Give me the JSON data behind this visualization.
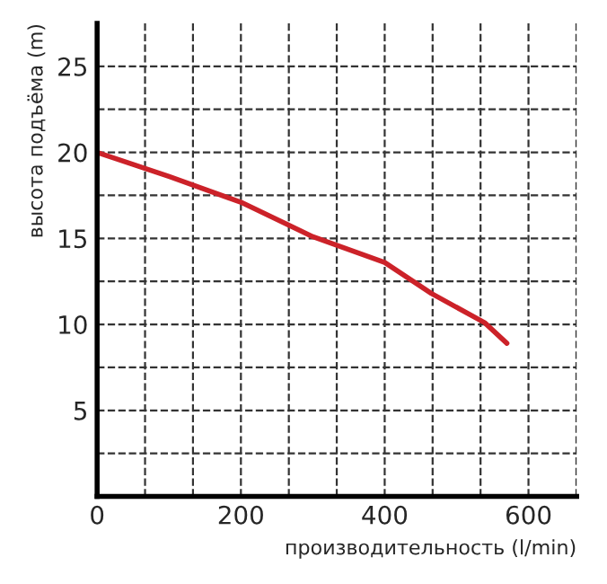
{
  "chart_data": {
    "type": "line",
    "xlabel": "производительность (l/min)",
    "ylabel": "высота подъёма (m)",
    "x": [
      0,
      100,
      200,
      300,
      400,
      465,
      539,
      570
    ],
    "series": [
      {
        "color": "#cc2229",
        "values": [
          20,
          18.6,
          17.1,
          15.1,
          13.6,
          11.8,
          10.1,
          8.9
        ]
      }
    ],
    "xlim": [
      0,
      667
    ],
    "ylim": [
      0,
      27.5
    ],
    "xticks": [
      0,
      {
        "value": 66.67,
        "label": null
      },
      {
        "value": 133.33,
        "label": null
      },
      200,
      {
        "value": 266.67,
        "label": null
      },
      {
        "value": 333.33,
        "label": null
      },
      400,
      {
        "value": 466.67,
        "label": null
      },
      {
        "value": 533.33,
        "label": null
      },
      600,
      {
        "value": 666.67,
        "label": null
      }
    ],
    "yticks": [
      {
        "value": 2.5,
        "label": null
      },
      5,
      {
        "value": 7.5,
        "label": null
      },
      10,
      {
        "value": 12.5,
        "label": null
      },
      15,
      {
        "value": 17.5,
        "label": null
      },
      20,
      {
        "value": 22.5,
        "label": null
      },
      25
    ],
    "grid": true,
    "marker": "none",
    "line_style": "solid"
  }
}
